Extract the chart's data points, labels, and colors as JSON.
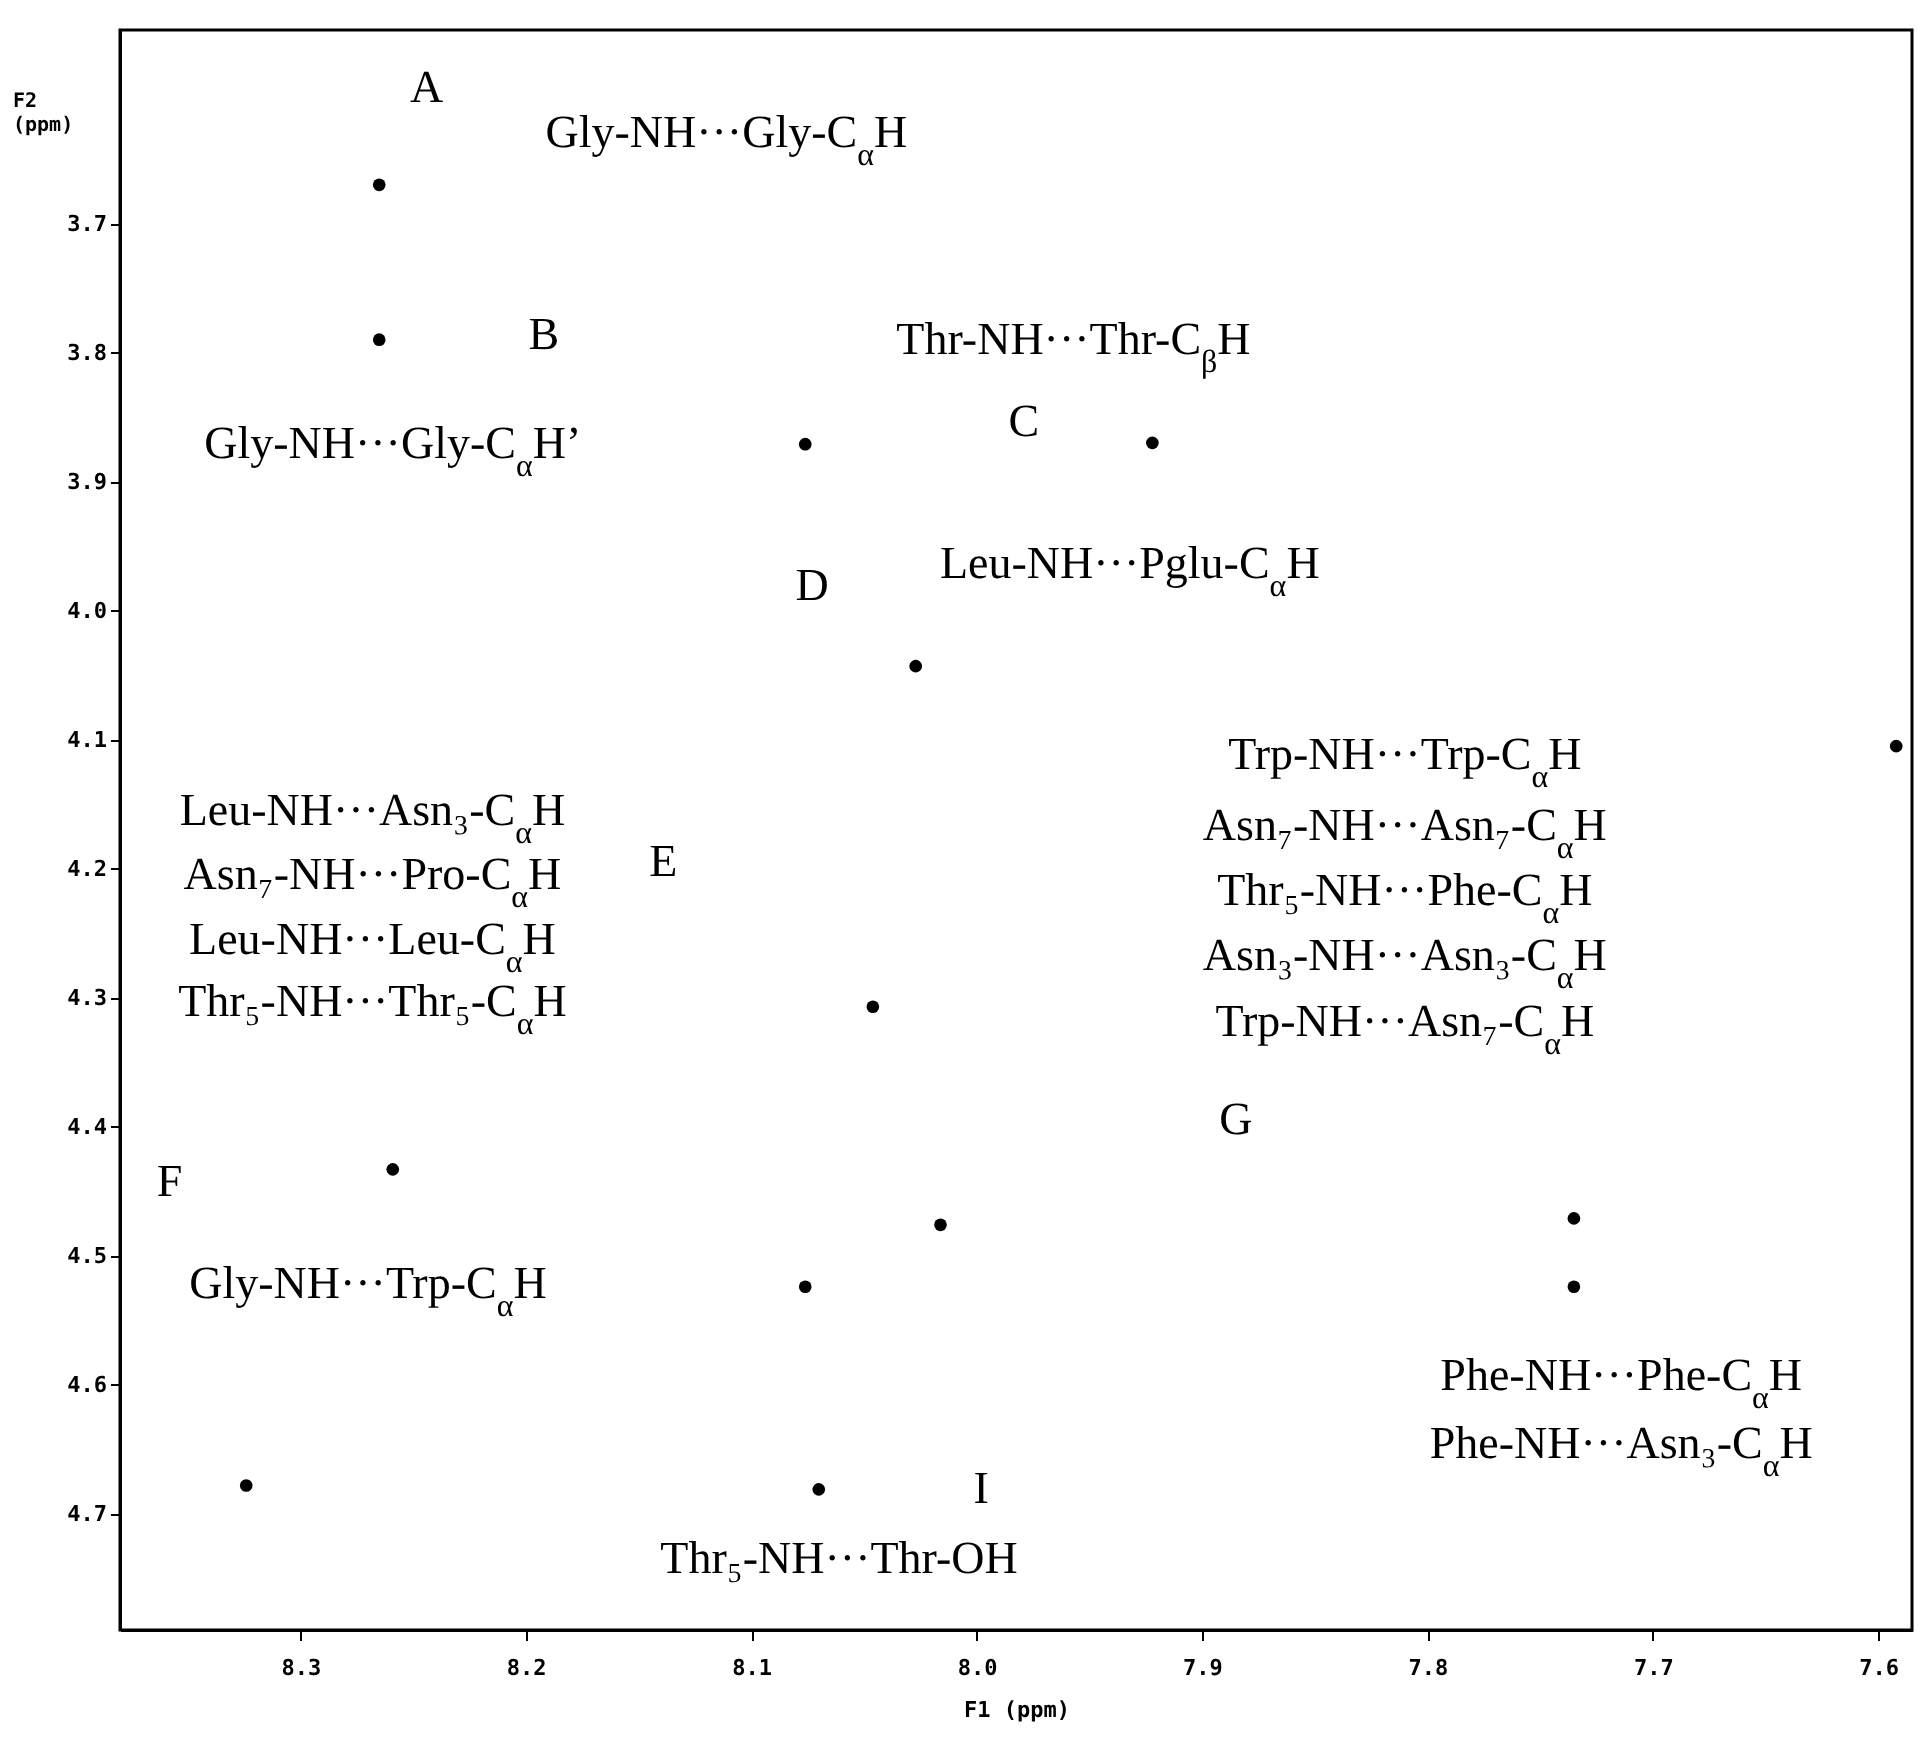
{
  "chart_data": {
    "type": "scatter",
    "xlabel": "F1 (ppm)",
    "ylabel": "F2 (ppm)",
    "x": [
      8.265,
      8.265,
      8.076,
      7.922,
      8.027,
      8.046,
      8.259,
      8.016,
      8.076,
      7.735,
      7.735,
      8.07,
      8.324,
      7.592
    ],
    "values": [
      3.67,
      3.79,
      3.871,
      3.87,
      4.043,
      4.307,
      4.433,
      4.476,
      4.524,
      4.471,
      4.524,
      4.681,
      4.678,
      4.105
    ],
    "color": "#000000",
    "marker": "circle",
    "grid": false,
    "xlim": [
      8.38,
      7.585
    ],
    "xticks": [
      8.3,
      8.2,
      8.1,
      {
        "value": 8.0,
        "label": "8.0"
      },
      7.9,
      7.8,
      7.7,
      7.6
    ],
    "ylim": [
      4.79,
      3.55
    ],
    "yticks": [
      3.7,
      3.8,
      3.9,
      {
        "value": 4.0,
        "label": "4.0"
      },
      4.1,
      4.2,
      4.3,
      4.4,
      4.5,
      4.6,
      4.7
    ],
    "annotations": [
      "A",
      "B",
      "C",
      "D",
      "E",
      "F",
      "G",
      "I",
      "Gly-NH···Gly-C$_{α}$H",
      "Gly-NH···Gly-C$_{α}$H’",
      "Thr-NH···Thr-C$_{β}$H",
      "Leu-NH···Pglu-C$_{α}$H",
      "Leu-NH···Asn₃-C$_{α}$H",
      "Asn₇-NH···Pro-C$_{α}$H",
      "Leu-NH···Leu-C$_{α}$H",
      "Thr₅-NH···Thr₅-C$_{α}$H",
      "Trp-NH···Trp-C$_{α}$H",
      "Asn₇-NH···Asn₇-C$_{α}$H",
      "Thr₅-NH···Phe-C$_{α}$H",
      "Asn₃-NH···Asn₃-C$_{α}$H",
      "Trp-NH···Asn₇-C$_{α}$H",
      "Gly-NH···Trp-C$_{α}$H",
      "Phe-NH···Phe-C$_{α}$H",
      "Phe-NH···Asn₃-C$_{α}$H",
      "Thr₅-NH···Thr-OH"
    ]
  }
}
